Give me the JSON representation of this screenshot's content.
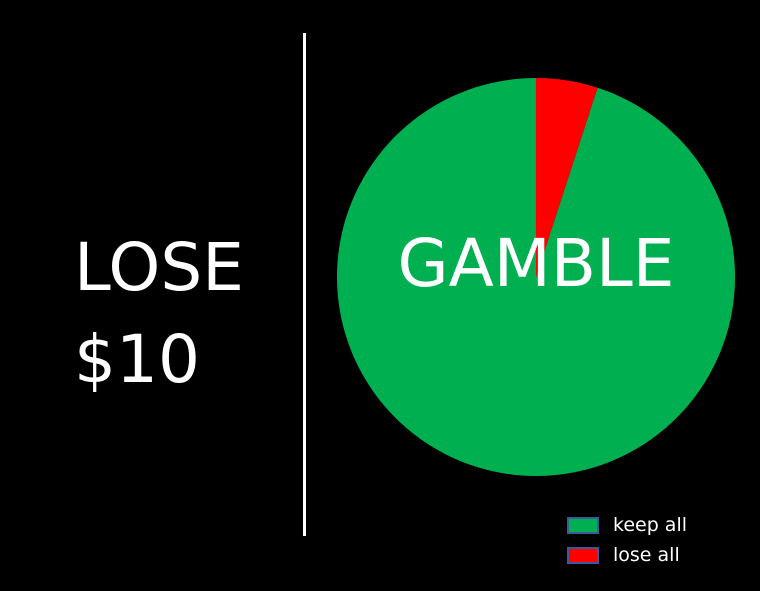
{
  "left_option": {
    "line1": "LOSE",
    "line2": "$10"
  },
  "right_option": {
    "label": "GAMBLE"
  },
  "chart_data": {
    "type": "pie",
    "title": "",
    "slices": [
      {
        "label": "keep all",
        "value": 0.95,
        "color": "#00b050"
      },
      {
        "label": "lose all",
        "value": 0.05,
        "color": "#ff0000"
      }
    ],
    "start_angle_deg": 0,
    "direction": "counterclockwise",
    "legend_placement": "bottom-right"
  },
  "colors": {
    "background": "#000000",
    "text": "#ffffff",
    "legend_border": "#3b5a9a"
  }
}
